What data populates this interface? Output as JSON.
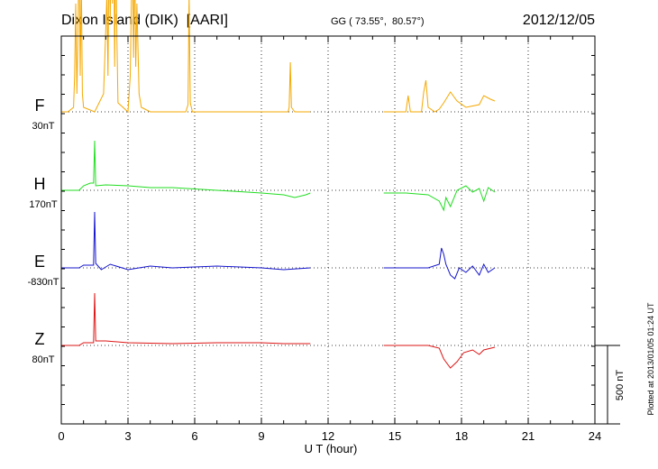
{
  "header": {
    "station": "Dixon Island (DIK)  [AARI]",
    "coords": "GG ( 73.55°,  80.57°)",
    "date": "2012/12/05"
  },
  "footer": {
    "plotted": "Plotted at 2013/01/05 01:24 UT"
  },
  "chart_data": {
    "type": "line",
    "xlabel": "U T (hour)",
    "xlim": [
      0,
      24
    ],
    "xticks": [
      0,
      3,
      6,
      9,
      12,
      15,
      18,
      21,
      24
    ],
    "grid": true,
    "scale_bar": {
      "label": "500 nT",
      "nT": 500
    },
    "series": [
      {
        "name": "F",
        "offset_label": "30nT",
        "color": "#f5a800",
        "segments": [
          [
            [
              0,
              0
            ],
            [
              0.3,
              0
            ],
            [
              0.55,
              -5
            ],
            [
              0.6,
              -40
            ],
            [
              0.65,
              -120
            ],
            [
              0.7,
              -20
            ],
            [
              0.75,
              -90
            ],
            [
              0.8,
              -180
            ],
            [
              0.85,
              -40
            ],
            [
              0.9,
              -150
            ],
            [
              0.95,
              -20
            ],
            [
              1.0,
              -5
            ],
            [
              1.5,
              0
            ],
            [
              1.9,
              -20
            ],
            [
              2.0,
              -90
            ],
            [
              2.05,
              -130
            ],
            [
              2.1,
              -40
            ],
            [
              2.15,
              -200
            ],
            [
              2.2,
              -100
            ],
            [
              2.25,
              -260
            ],
            [
              2.3,
              -120
            ],
            [
              2.35,
              -230
            ],
            [
              2.4,
              -50
            ],
            [
              2.45,
              -200
            ],
            [
              2.5,
              -80
            ],
            [
              2.55,
              -10
            ],
            [
              3.0,
              0
            ],
            [
              3.1,
              -40
            ],
            [
              3.15,
              -120
            ],
            [
              3.2,
              -170
            ],
            [
              3.25,
              -60
            ],
            [
              3.3,
              -180
            ],
            [
              3.35,
              -50
            ],
            [
              3.4,
              -120
            ],
            [
              3.5,
              -20
            ],
            [
              3.6,
              -5
            ],
            [
              4.0,
              0
            ],
            [
              5.6,
              0
            ],
            [
              5.7,
              -8
            ],
            [
              5.75,
              -130
            ],
            [
              5.8,
              -10
            ],
            [
              5.9,
              0
            ],
            [
              10.2,
              0
            ],
            [
              10.25,
              -5
            ],
            [
              10.3,
              -55
            ],
            [
              10.35,
              -5
            ],
            [
              10.5,
              0
            ],
            [
              11.2,
              0
            ]
          ],
          [
            [
              14.5,
              0
            ],
            [
              15.5,
              0
            ],
            [
              15.6,
              -18
            ],
            [
              15.7,
              0
            ],
            [
              16.2,
              0
            ],
            [
              16.3,
              -22
            ],
            [
              16.4,
              -35
            ],
            [
              16.5,
              -5
            ],
            [
              16.8,
              0
            ],
            [
              17.0,
              -3
            ],
            [
              17.2,
              -10
            ],
            [
              17.5,
              -22
            ],
            [
              17.8,
              -12
            ],
            [
              18.2,
              -5
            ],
            [
              18.8,
              -8
            ],
            [
              19.0,
              -18
            ],
            [
              19.3,
              -14
            ],
            [
              19.5,
              -12
            ]
          ]
        ]
      },
      {
        "name": "H",
        "offset_label": "170nT",
        "color": "#22dd22",
        "segments": [
          [
            [
              0,
              0
            ],
            [
              0.8,
              0
            ],
            [
              1.0,
              -5
            ],
            [
              1.3,
              -8
            ],
            [
              1.45,
              -8
            ],
            [
              1.5,
              -55
            ],
            [
              1.55,
              -5
            ],
            [
              2.0,
              -6
            ],
            [
              3.0,
              -5
            ],
            [
              4.0,
              -3
            ],
            [
              5.0,
              -3
            ],
            [
              7.0,
              0
            ],
            [
              9.0,
              3
            ],
            [
              10.0,
              5
            ],
            [
              10.5,
              8
            ],
            [
              11.0,
              5
            ],
            [
              11.2,
              3
            ]
          ],
          [
            [
              14.5,
              3
            ],
            [
              15.5,
              3
            ],
            [
              16.5,
              5
            ],
            [
              17.0,
              12
            ],
            [
              17.2,
              22
            ],
            [
              17.3,
              8
            ],
            [
              17.5,
              18
            ],
            [
              17.8,
              0
            ],
            [
              18.2,
              -5
            ],
            [
              18.5,
              2
            ],
            [
              18.8,
              -2
            ],
            [
              19.0,
              12
            ],
            [
              19.2,
              -3
            ],
            [
              19.5,
              2
            ]
          ]
        ]
      },
      {
        "name": "E",
        "offset_label": "-830nT",
        "color": "#1515cc",
        "segments": [
          [
            [
              0,
              0
            ],
            [
              0.8,
              0
            ],
            [
              1.0,
              -3
            ],
            [
              1.3,
              -3
            ],
            [
              1.45,
              -3
            ],
            [
              1.5,
              -62
            ],
            [
              1.55,
              -5
            ],
            [
              1.8,
              2
            ],
            [
              2.2,
              -4
            ],
            [
              3.0,
              2
            ],
            [
              4.0,
              -2
            ],
            [
              5.0,
              0
            ],
            [
              7.0,
              -2
            ],
            [
              9.0,
              0
            ],
            [
              10.0,
              2
            ],
            [
              11.2,
              0
            ]
          ],
          [
            [
              14.5,
              0
            ],
            [
              15.5,
              0
            ],
            [
              16.5,
              0
            ],
            [
              17.0,
              -4
            ],
            [
              17.1,
              -22
            ],
            [
              17.2,
              -15
            ],
            [
              17.3,
              -4
            ],
            [
              17.5,
              8
            ],
            [
              17.7,
              12
            ],
            [
              17.9,
              0
            ],
            [
              18.2,
              5
            ],
            [
              18.5,
              -2
            ],
            [
              18.8,
              8
            ],
            [
              19.0,
              -4
            ],
            [
              19.2,
              5
            ],
            [
              19.5,
              0
            ]
          ]
        ]
      },
      {
        "name": "Z",
        "offset_label": "80nT",
        "color": "#dd1515",
        "segments": [
          [
            [
              0,
              0
            ],
            [
              0.8,
              0
            ],
            [
              1.0,
              -3
            ],
            [
              1.45,
              -3
            ],
            [
              1.5,
              -58
            ],
            [
              1.55,
              -5
            ],
            [
              2.0,
              -5
            ],
            [
              3.0,
              -3
            ],
            [
              5.0,
              -2
            ],
            [
              7.0,
              -3
            ],
            [
              9.0,
              -3
            ],
            [
              10.0,
              -2
            ],
            [
              11.2,
              -2
            ]
          ],
          [
            [
              14.5,
              0
            ],
            [
              15.5,
              0
            ],
            [
              16.5,
              0
            ],
            [
              17.0,
              3
            ],
            [
              17.2,
              15
            ],
            [
              17.5,
              25
            ],
            [
              17.8,
              18
            ],
            [
              18.1,
              8
            ],
            [
              18.5,
              5
            ],
            [
              18.8,
              10
            ],
            [
              19.0,
              5
            ],
            [
              19.5,
              2
            ]
          ]
        ]
      }
    ]
  }
}
